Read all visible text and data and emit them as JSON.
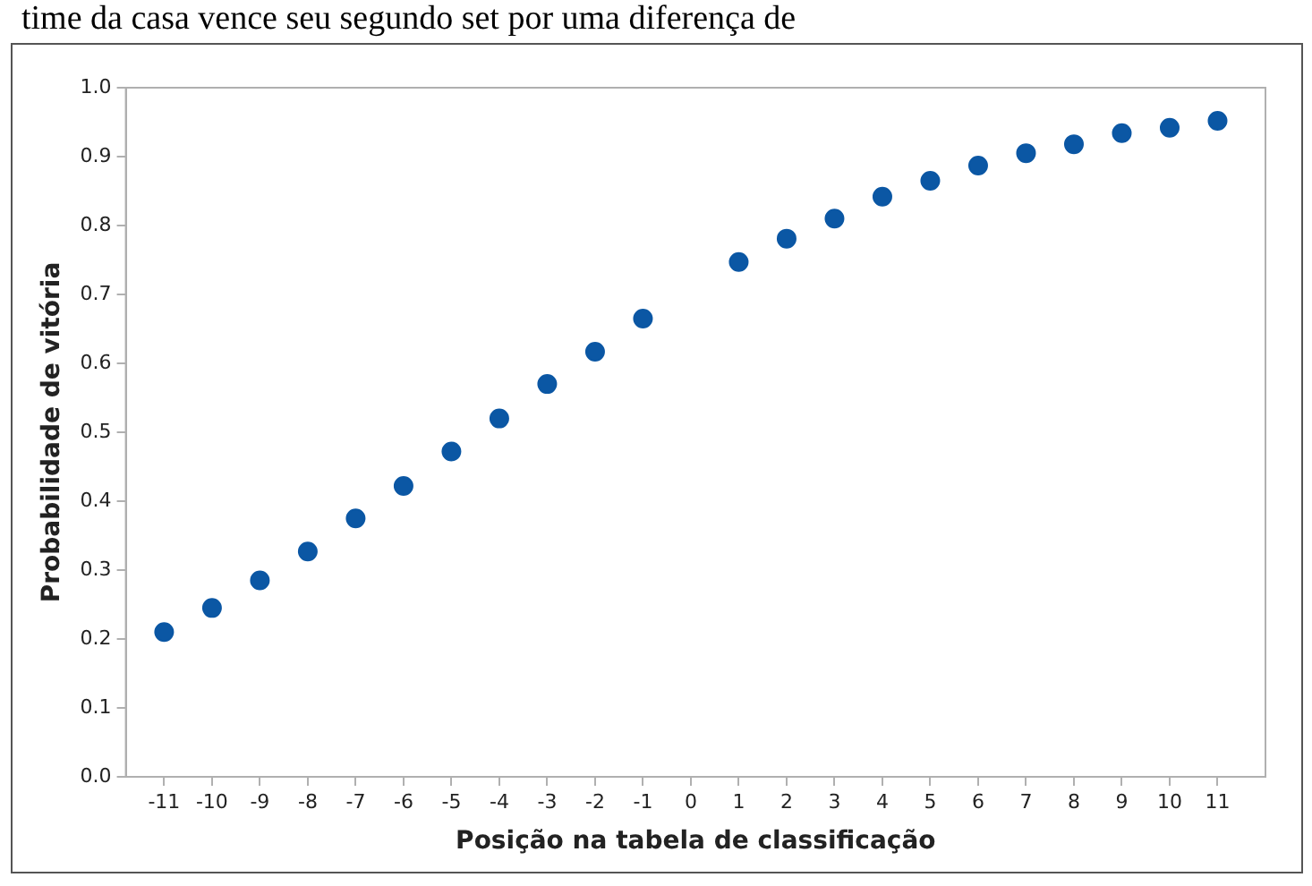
{
  "chart_data": {
    "type": "scatter",
    "xlabel": "Posição na tabela de classificação",
    "ylabel": "Probabilidade de vitória",
    "annotations": [
      "time da casa vence seu segundo set por uma diferença de"
    ],
    "x": [
      -11,
      -10,
      -9,
      -8,
      -7,
      -6,
      -5,
      -4,
      -3,
      -2,
      -1,
      1,
      2,
      3,
      4,
      5,
      6,
      7,
      8,
      9,
      10,
      11
    ],
    "series": [
      {
        "color": "#0b57a4",
        "values": [
          0.21,
          0.245,
          0.285,
          0.327,
          0.375,
          0.422,
          0.472,
          0.52,
          0.57,
          0.617,
          0.665,
          0.747,
          0.781,
          0.81,
          0.842,
          0.865,
          0.887,
          0.905,
          0.918,
          0.934,
          0.942,
          0.952
        ]
      }
    ],
    "xlim": [
      -11.8,
      12
    ],
    "xticks": [
      -11,
      -10,
      -9,
      -8,
      -7,
      -6,
      -5,
      -4,
      -3,
      -2,
      -1,
      0,
      1,
      2,
      3,
      4,
      5,
      6,
      7,
      8,
      9,
      10,
      11
    ],
    "ylim": [
      0,
      1
    ],
    "yticks": [
      {
        "value": 0,
        "label": "0.0"
      },
      {
        "value": 0.1,
        "label": "0.1"
      },
      {
        "value": 0.2,
        "label": "0.2"
      },
      {
        "value": 0.3,
        "label": "0.3"
      },
      {
        "value": 0.4,
        "label": "0.4"
      },
      {
        "value": 0.5,
        "label": "0.5"
      },
      {
        "value": 0.6,
        "label": "0.6"
      },
      {
        "value": 0.7,
        "label": "0.7"
      },
      {
        "value": 0.8,
        "label": "0.8"
      },
      {
        "value": 0.9,
        "label": "0.9"
      },
      {
        "value": 1,
        "label": "1.0"
      }
    ],
    "grid": false,
    "legend": false,
    "marker": "circle"
  }
}
